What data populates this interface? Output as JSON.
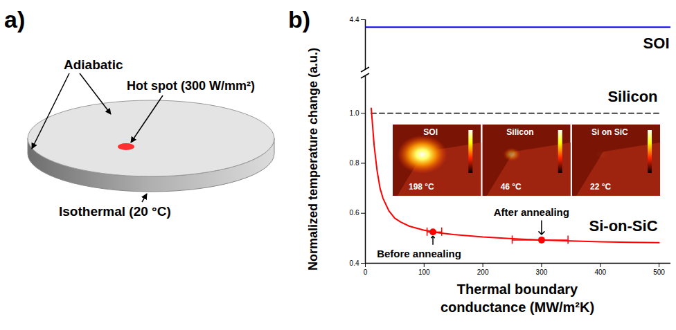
{
  "diagram": {
    "panel_label": "a)",
    "labels": {
      "adiabatic": "Adiabatic",
      "hot_spot": "Hot spot (300 W/mm²)",
      "isothermal": "Isothermal (20 °C)"
    }
  },
  "chart_data": {
    "type": "line",
    "panel_label": "b)",
    "x_label": "Thermal boundary conductance (MW/m²K)",
    "y_label": "Normalized temperature change (a.u.)",
    "xlim": [
      0,
      520
    ],
    "xticks": [
      0,
      100,
      200,
      300,
      400,
      500
    ],
    "ylim": [
      [
        0.4,
        1.15
      ],
      [
        4.2,
        4.4
      ]
    ],
    "yticks": [
      [
        0.4,
        0.6,
        0.8,
        {
          "value": 1,
          "label": "1.0"
        }
      ],
      [
        4.4
      ]
    ],
    "series": [
      {
        "name": "SOI",
        "type": "line",
        "color": "#0000ff",
        "line_style": "solid",
        "x": [
          0,
          520
        ],
        "values": [
          4.37,
          4.37
        ]
      },
      {
        "name": "Silicon",
        "type": "line",
        "color": "#404040",
        "line_style": "dashed",
        "x": [
          10,
          500
        ],
        "values": [
          1,
          1
        ]
      },
      {
        "name": "Si-on-SiC",
        "type": "line",
        "color": "#ff0000",
        "line_style": "solid",
        "x": [
          10,
          15,
          20,
          25,
          30,
          40,
          50,
          60,
          75,
          100,
          125,
          150,
          200,
          250,
          300,
          350,
          400,
          450,
          500
        ],
        "values": [
          1.02,
          0.87,
          0.77,
          0.7,
          0.66,
          0.61,
          0.58,
          0.565,
          0.548,
          0.532,
          0.522,
          0.515,
          0.505,
          0.498,
          0.493,
          0.489,
          0.486,
          0.484,
          0.482
        ],
        "points": {
          "x": [
            115,
            300
          ],
          "values": [
            0.525,
            0.493
          ],
          "x_error": [
            [
              105,
              130
            ],
            [
              250,
              345
            ]
          ],
          "labels": [
            "Before annealing",
            "After annealing"
          ]
        }
      }
    ],
    "inset": {
      "panels": [
        {
          "title": "SOI",
          "max_temperature": 198,
          "label": "198 °C"
        },
        {
          "title": "Silicon",
          "max_temperature": 46,
          "label": "46 °C"
        },
        {
          "title": "Si on SiC",
          "max_temperature": 22,
          "label": "22 °C"
        }
      ]
    }
  }
}
